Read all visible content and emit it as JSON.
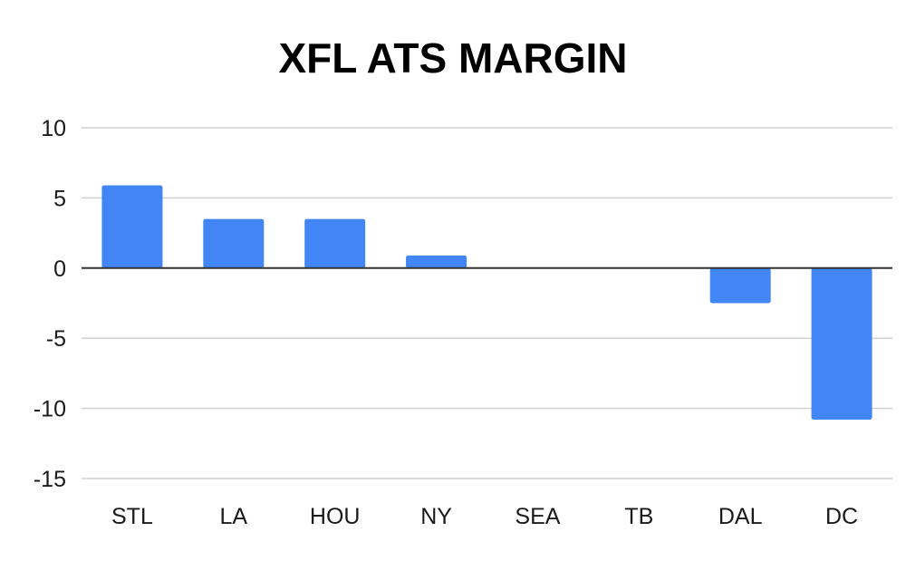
{
  "chart_data": {
    "type": "bar",
    "title": "XFL ATS MARGIN",
    "xlabel": "",
    "ylabel": "",
    "categories": [
      "STL",
      "LA",
      "HOU",
      "NY",
      "SEA",
      "TB",
      "DAL",
      "DC"
    ],
    "values": [
      5.9,
      3.5,
      3.5,
      0.9,
      0,
      0,
      -2.5,
      -10.8
    ],
    "ylim": [
      -15,
      10
    ],
    "yticks": [
      10,
      5,
      0,
      -5,
      -10,
      -15
    ],
    "grid": true,
    "legend": "none",
    "bar_color": "#4285f4"
  }
}
